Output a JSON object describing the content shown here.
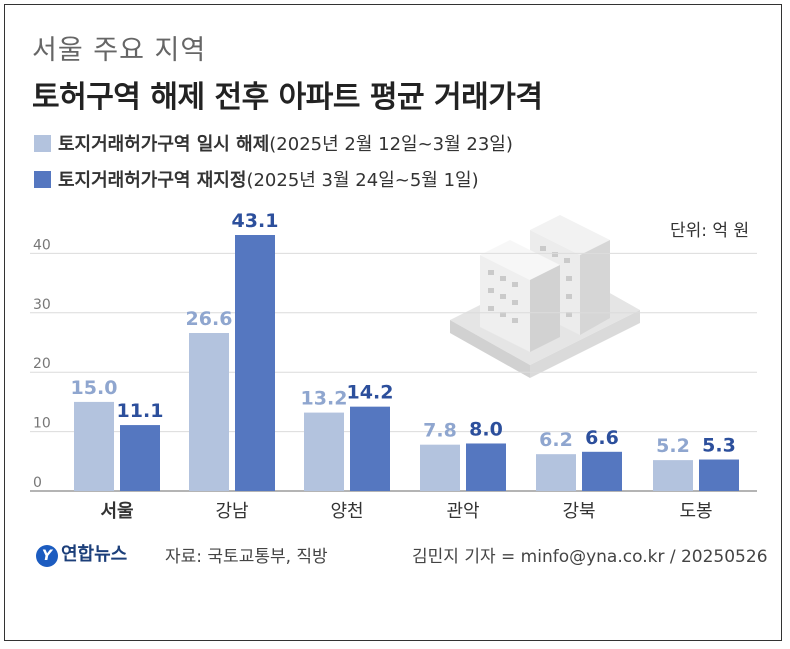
{
  "header": {
    "subtitle": "서울 주요 지역",
    "title": "토허구역 해제 전후 아파트 평균 거래가격"
  },
  "legend": [
    {
      "name": "토지거래허가구역 일시 해제",
      "period": "(2025년 2월 12일~3월 23일)",
      "color": "#b3c3de"
    },
    {
      "name": "토지거래허가구역 재지정",
      "period": "(2025년 3월 24일~5월 1일)",
      "color": "#5577c0"
    }
  ],
  "unit": "단위: 억 원",
  "footer": {
    "logo": "연합뉴스",
    "source": "자료: 국토교통부, 직방",
    "credit": "김민지 기자 = minfo@yna.co.kr / 20250526"
  },
  "chart_data": {
    "type": "bar",
    "categories": [
      "서울",
      "강남",
      "양천",
      "관악",
      "강북",
      "도봉"
    ],
    "highlight_category": "서울",
    "series": [
      {
        "name": "토지거래허가구역 일시 해제",
        "values": [
          15.0,
          26.6,
          13.2,
          7.8,
          6.2,
          5.2
        ],
        "color": "#b3c3de",
        "label_color": "#8fa6cf"
      },
      {
        "name": "토지거래허가구역 재지정",
        "values": [
          11.1,
          43.1,
          14.2,
          8.0,
          6.6,
          5.3
        ],
        "color": "#5577c0",
        "label_color": "#2c4f9c"
      }
    ],
    "yticks": [
      0,
      10,
      20,
      30,
      40
    ],
    "ylim": [
      0,
      43.1
    ],
    "grid": true,
    "legend_position": "top-left"
  }
}
